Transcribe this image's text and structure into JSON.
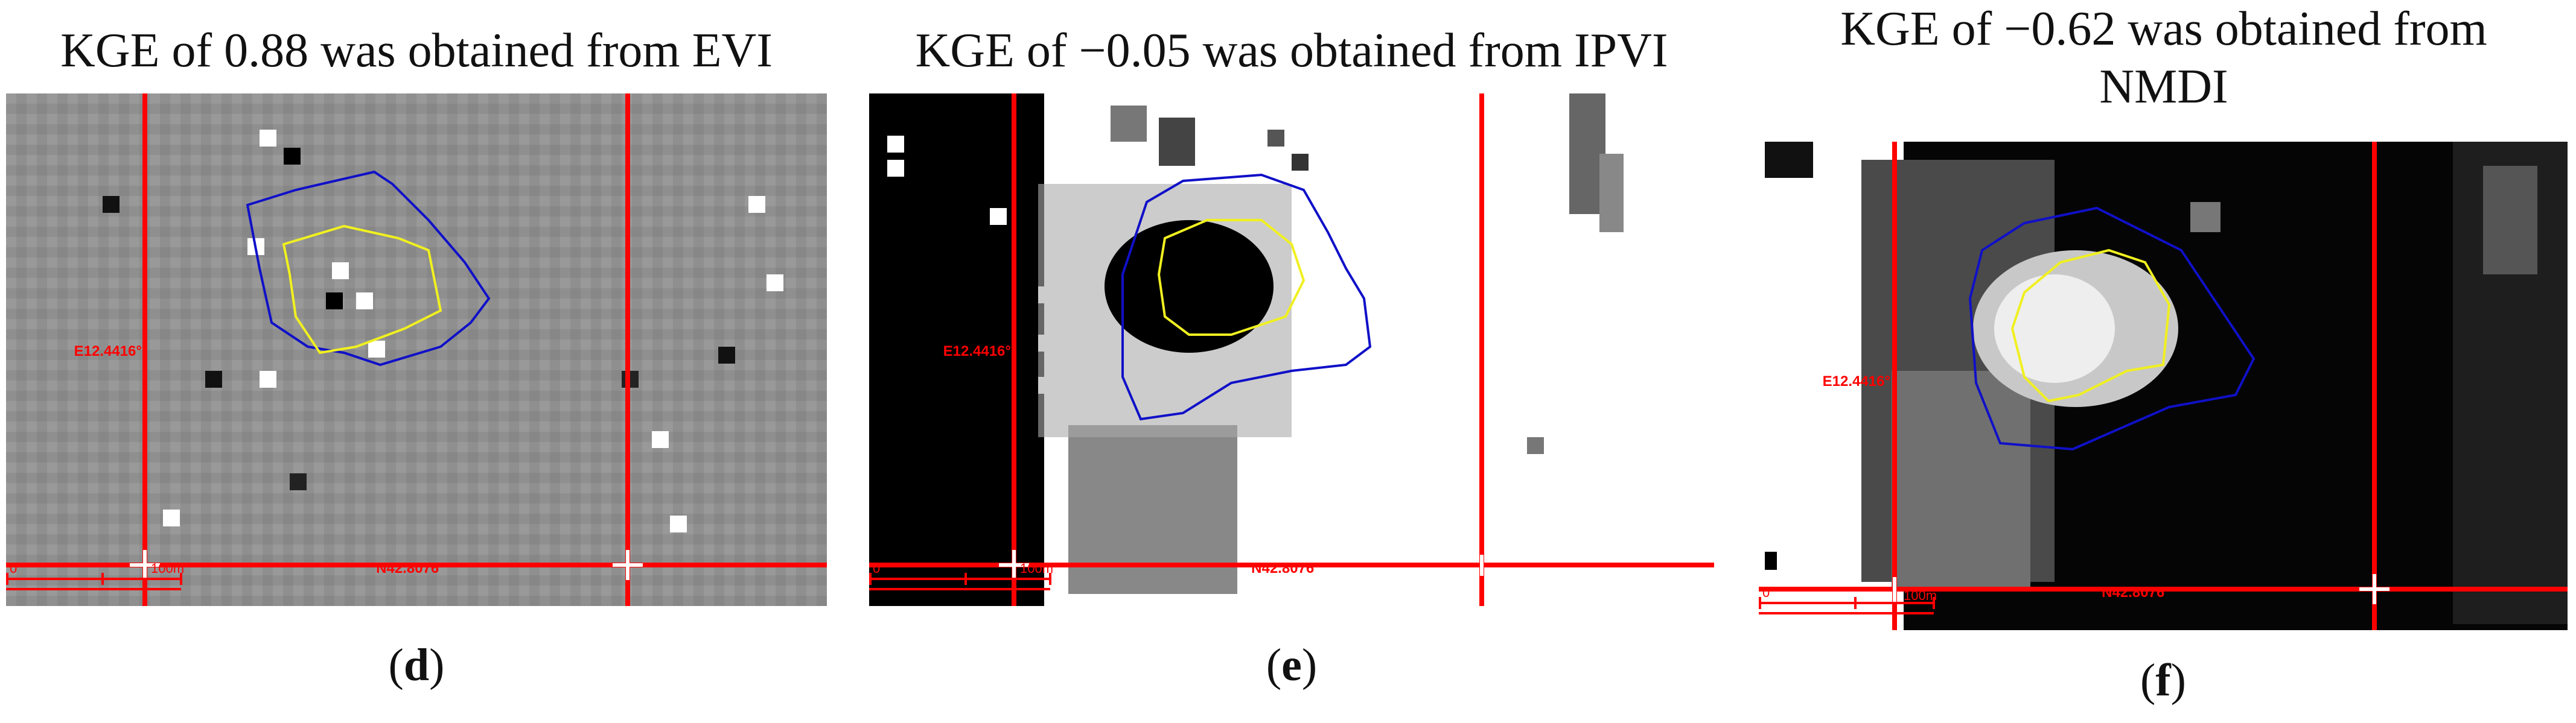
{
  "panels": [
    {
      "id": "d",
      "title": "KGE of 0.88 was obtained from EVI",
      "caption_letter": "d",
      "lon_label": "E12.4416°",
      "lat_label": "N42.8076°",
      "scale_zero": "0",
      "scale_label": "100m"
    },
    {
      "id": "e",
      "title": "KGE of −0.05 was obtained from IPVI",
      "caption_letter": "e",
      "lon_label": "E12.4416°",
      "lat_label": "N42.8076°",
      "scale_zero": "0",
      "scale_label": "100m"
    },
    {
      "id": "f",
      "title": "KGE of −0.62 was obtained from NMDI",
      "caption_letter": "f",
      "lon_label": "E12.4416°",
      "lat_label": "N42.8076°",
      "scale_zero": "0",
      "scale_label": "100m"
    }
  ],
  "colors": {
    "crosshair": "#ff0000",
    "outer_boundary": "#1010c8",
    "inner_boundary": "#f0f020"
  }
}
